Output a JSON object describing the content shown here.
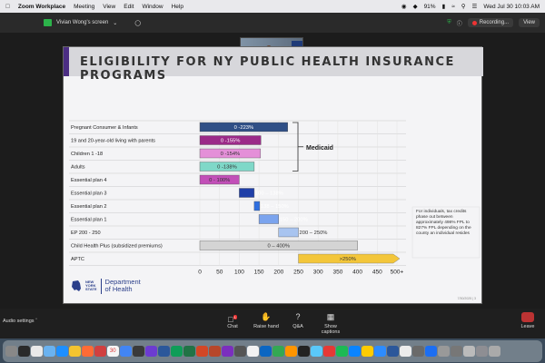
{
  "menubar": {
    "app_name": "Zoom Workplace",
    "items": [
      "Meeting",
      "View",
      "Edit",
      "Window",
      "Help"
    ],
    "battery": "91%",
    "clock": "Wed Jul 30  10:03 AM"
  },
  "zoom_toolbar": {
    "share_label": "Vivian Wong's screen",
    "recording_label": "Recording...",
    "view_label": "View"
  },
  "video_tile": {
    "name": "Vivian Wong"
  },
  "slide": {
    "title": "ELIGIBILITY FOR NY PUBLIC HEALTH INSURANCE PROGRAMS",
    "note": "For individuals, tax credits phase out between approximately 498% FPL to 827% FPL depending on the county an individual resides",
    "logo_state": [
      "NEW",
      "YORK",
      "STATE"
    ],
    "logo_dept": [
      "Department",
      "of Health"
    ],
    "footer": "7/30/2025 | 3"
  },
  "chart_data": {
    "type": "bar",
    "orientation": "horizontal-range",
    "categories": [
      "Pregnant Consumer & Infants",
      "19 and 20-year-old living with parents",
      "Children 1 -18",
      "Adults",
      "Essential plan 4",
      "Essential plan 3",
      "Essential plan 2",
      "Essential plan 1",
      "EP 200 - 250",
      "Child Health Plus (subsidized premiums)",
      "APTC"
    ],
    "ranges": [
      [
        0,
        223
      ],
      [
        0,
        155
      ],
      [
        0,
        154
      ],
      [
        0,
        138
      ],
      [
        0,
        100
      ],
      [
        100,
        138
      ],
      [
        138,
        150
      ],
      [
        150,
        200
      ],
      [
        200,
        250
      ],
      [
        0,
        400
      ],
      [
        250,
        500
      ]
    ],
    "labels": [
      "0 -223%",
      "0 -155%",
      "0 -154%",
      "0 -138%",
      "0 - 100%",
      "100 – 138%",
      "138 – 150%",
      "150 – 200%",
      "200 – 250%",
      "0 – 400%",
      ">250%"
    ],
    "colors": [
      "#2f4f86",
      "#9b2a88",
      "#e48fd8",
      "#7fd8c8",
      "#c24fb8",
      "#1f3fa8",
      "#2f6fe0",
      "#7ba4ee",
      "#a8c4f0",
      "#d4d4d4",
      "#f3c63a"
    ],
    "label_colors": [
      "#ffffff",
      "#ffffff",
      "#333333",
      "#333333",
      "#333333",
      "#ffffff",
      "#ffffff",
      "#ffffff",
      "#333333",
      "#333333",
      "#333333"
    ],
    "x_ticks": [
      "0",
      "50",
      "100",
      "150",
      "200",
      "250",
      "300",
      "350",
      "400",
      "450",
      "500+"
    ],
    "xlim": [
      0,
      500
    ],
    "bracket_label": "Medicaid",
    "bracket_rows": [
      0,
      3
    ]
  },
  "controls": {
    "audio_settings": "Audio settings",
    "chat": "Chat",
    "chat_badge": "1",
    "raise_hand": "Raise hand",
    "qa": "Q&A",
    "show_captions": "Show captions",
    "leave": "Leave"
  },
  "dock": {
    "calendar_day": "30",
    "icon_colors": [
      "#888",
      "#2a2a2a",
      "#e9e9e9",
      "#6ab2f0",
      "#1e8fff",
      "#f4c430",
      "#ff6b35",
      "#d04040",
      "#f5f5f5",
      "#4285f4",
      "#3a3a3a",
      "#6c3bd1",
      "#2b579a",
      "#0f9d58",
      "#217346",
      "#d24726",
      "#b7472a",
      "#7b2fbe",
      "#555",
      "#f2f2f2",
      "#0b66c2",
      "#34a853",
      "#ff9500",
      "#222",
      "#5ac8fa",
      "#e53935",
      "#1db954",
      "#0a84ff",
      "#ffcc00",
      "#2d8cff",
      "#2b579a",
      "#ececec",
      "#6a6a6a",
      "#1c6ef2",
      "#999",
      "#777",
      "#bbb",
      "#8e8e93",
      "#aaa"
    ]
  }
}
